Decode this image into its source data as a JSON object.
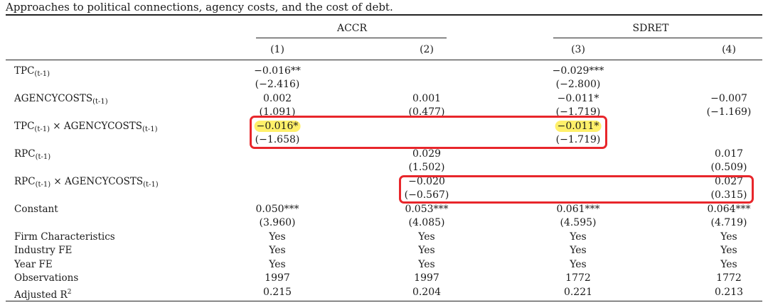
{
  "caption": "Approaches to political connections, agency costs, and the cost of debt.",
  "groups": {
    "left": "ACCR",
    "right": "SDRET"
  },
  "columns": [
    "(1)",
    "(2)",
    "(3)",
    "(4)"
  ],
  "rows": [
    {
      "label": "TPC",
      "sub": "(t-1)",
      "tail": "",
      "tail_sub": "",
      "coef": [
        "−0.016**",
        "",
        "−0.029***",
        ""
      ],
      "t": [
        "(−2.416)",
        "",
        "(−2.800)",
        ""
      ]
    },
    {
      "label": "AGENCYCOSTS",
      "sub": "(t-1)",
      "tail": "",
      "tail_sub": "",
      "coef": [
        "0.002",
        "0.001",
        "−0.011*",
        "−0.007"
      ],
      "t": [
        "(1.091)",
        "(0.477)",
        "(−1.719)",
        "(−1.169)"
      ]
    },
    {
      "label": "TPC",
      "sub": "(t-1)",
      "tail": " × AGENCYCOSTS",
      "tail_sub": "(t-1)",
      "coef": [
        "−0.016*",
        "",
        "−0.011*",
        ""
      ],
      "t": [
        "(−1.658)",
        "",
        "(−1.719)",
        ""
      ]
    },
    {
      "label": "RPC",
      "sub": "(t-1)",
      "tail": "",
      "tail_sub": "",
      "coef": [
        "",
        "0.029",
        "",
        "0.017"
      ],
      "t": [
        "",
        "(1.502)",
        "",
        "(0.509)"
      ]
    },
    {
      "label": "RPC",
      "sub": "(t-1)",
      "tail": " × AGENCYCOSTS",
      "tail_sub": "(t-1)",
      "coef": [
        "",
        "−0.020",
        "",
        "0.027"
      ],
      "t": [
        "",
        "(−0.567)",
        "",
        "(0.315)"
      ]
    },
    {
      "label": "Constant",
      "sub": "",
      "tail": "",
      "tail_sub": "",
      "coef": [
        "0.050***",
        "0.053***",
        "0.061***",
        "0.064***"
      ],
      "t": [
        "(3.960)",
        "(4.085)",
        "(4.595)",
        "(4.719)"
      ]
    }
  ],
  "controls": [
    {
      "label": "Firm Characteristics",
      "values": [
        "Yes",
        "Yes",
        "Yes",
        "Yes"
      ]
    },
    {
      "label": "Industry FE",
      "values": [
        "Yes",
        "Yes",
        "Yes",
        "Yes"
      ]
    },
    {
      "label": "Year FE",
      "values": [
        "Yes",
        "Yes",
        "Yes",
        "Yes"
      ]
    },
    {
      "label": "Observations",
      "values": [
        "1997",
        "1997",
        "1772",
        "1772"
      ]
    }
  ],
  "adj_r2": {
    "label": "Adjusted R",
    "sup": "2",
    "values": [
      "0.215",
      "0.204",
      "0.221",
      "0.213"
    ]
  },
  "colors": {
    "highlight": "#fff06a",
    "annotation_box": "#e8262b",
    "rule": "#222222"
  }
}
